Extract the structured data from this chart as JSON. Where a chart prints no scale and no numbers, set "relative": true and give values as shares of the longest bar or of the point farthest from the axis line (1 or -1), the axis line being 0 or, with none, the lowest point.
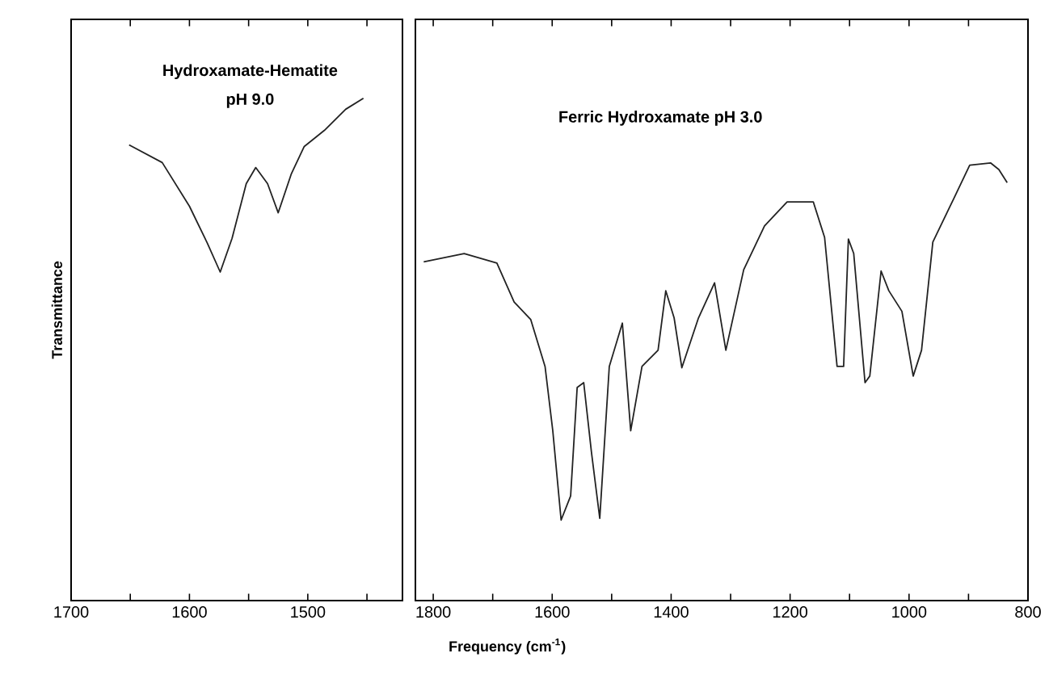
{
  "chart_data": [
    {
      "type": "line",
      "relative": true,
      "ylabel": "Transmittance",
      "annotations": [
        "Hydroxamate-Hematite",
        "pH 9.0"
      ],
      "xlim": [
        1700,
        1420
      ],
      "xticks": [
        1700,
        {
          "value": 1650,
          "label": null
        },
        1600,
        {
          "value": 1550,
          "label": null
        },
        1500,
        {
          "value": 1450,
          "label": null
        }
      ],
      "tick_labels": "x",
      "series": [
        {
          "color": "#222222",
          "x": [
            1651,
            1623,
            1600,
            1585,
            1574,
            1564,
            1552,
            1544,
            1534,
            1525,
            1514,
            1503,
            1486,
            1468,
            1453
          ],
          "values": [
            0.907,
            0.872,
            0.785,
            0.712,
            0.654,
            0.721,
            0.83,
            0.862,
            0.83,
            0.772,
            0.849,
            0.904,
            0.936,
            0.978,
            1
          ]
        }
      ]
    },
    {
      "type": "line",
      "relative": true,
      "xlabel": "Frequency (cm$^{-1}$)",
      "annotations": [
        "Ferric Hydroxamate pH 3.0"
      ],
      "xlim": [
        1830,
        800
      ],
      "xticks": [
        1800,
        {
          "value": 1700,
          "label": null
        },
        1600,
        {
          "value": 1500,
          "label": null
        },
        1400,
        {
          "value": 1300,
          "label": null
        },
        1200,
        {
          "value": 1100,
          "label": null
        },
        1000,
        {
          "value": 900,
          "label": null
        },
        800
      ],
      "tick_labels": "x",
      "series": [
        {
          "color": "#222222",
          "x": [
            1816,
            1748,
            1693,
            1664,
            1636,
            1612,
            1599,
            1585,
            1569,
            1558,
            1547,
            1534,
            1520,
            1504,
            1482,
            1468,
            1449,
            1422,
            1409,
            1395,
            1382,
            1354,
            1327,
            1308,
            1278,
            1243,
            1205,
            1161,
            1142,
            1121,
            1110,
            1102,
            1093,
            1074,
            1066,
            1047,
            1034,
            1012,
            993,
            979,
            960,
            925,
            898,
            863,
            849,
            835
          ],
          "values": [
            0.774,
            0.793,
            0.771,
            0.682,
            0.642,
            0.535,
            0.388,
            0.184,
            0.239,
            0.487,
            0.498,
            0.339,
            0.188,
            0.535,
            0.634,
            0.388,
            0.535,
            0.572,
            0.708,
            0.646,
            0.532,
            0.646,
            0.726,
            0.572,
            0.756,
            0.856,
            0.911,
            0.911,
            0.83,
            0.535,
            0.535,
            0.826,
            0.793,
            0.498,
            0.513,
            0.753,
            0.708,
            0.661,
            0.513,
            0.572,
            0.819,
            0.918,
            0.995,
            1,
            0.985,
            0.955
          ]
        }
      ]
    }
  ]
}
